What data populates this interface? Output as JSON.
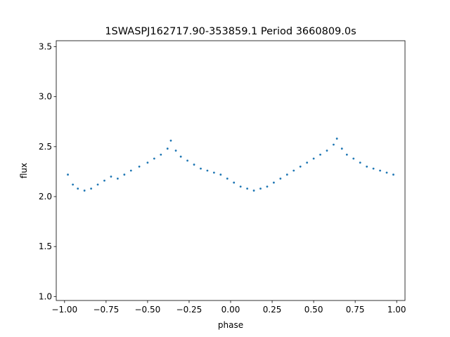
{
  "chart_data": {
    "type": "scatter",
    "title": "1SWASPJ162717.90-353859.1 Period 3660809.0s",
    "xlabel": "phase",
    "ylabel": "flux",
    "xlim": [
      -1.05,
      1.05
    ],
    "ylim": [
      0.96,
      3.56
    ],
    "x_ticks": [
      {
        "value": -1.0,
        "label": "−1.00"
      },
      {
        "value": -0.75,
        "label": "−0.75"
      },
      {
        "value": -0.5,
        "label": "−0.50"
      },
      {
        "value": -0.25,
        "label": "−0.25"
      },
      {
        "value": 0.0,
        "label": "0.00"
      },
      {
        "value": 0.25,
        "label": "0.25"
      },
      {
        "value": 0.5,
        "label": "0.50"
      },
      {
        "value": 0.75,
        "label": "0.75"
      },
      {
        "value": 1.0,
        "label": "1.00"
      }
    ],
    "y_ticks": [
      {
        "value": 1.0,
        "label": "1.0"
      },
      {
        "value": 1.5,
        "label": "1.5"
      },
      {
        "value": 2.0,
        "label": "2.0"
      },
      {
        "value": 2.5,
        "label": "2.5"
      },
      {
        "value": 3.0,
        "label": "3.0"
      },
      {
        "value": 3.5,
        "label": "3.5"
      }
    ],
    "grid": false,
    "marker_color": "#1f77b4",
    "series": [
      {
        "x": [
          -0.98,
          -0.95,
          -0.92,
          -0.88,
          -0.84,
          -0.8,
          -0.76,
          -0.72,
          -0.68,
          -0.64,
          -0.6,
          -0.55,
          -0.5,
          -0.46,
          -0.42,
          -0.38,
          -0.36,
          -0.33,
          -0.3,
          -0.26,
          -0.22,
          -0.18,
          -0.14,
          -0.1,
          -0.06,
          -0.02,
          0.02,
          0.06,
          0.1,
          0.14,
          0.18,
          0.22,
          0.26,
          0.3,
          0.34,
          0.38,
          0.42,
          0.46,
          0.5,
          0.54,
          0.58,
          0.62,
          0.64,
          0.67,
          0.7,
          0.74,
          0.78,
          0.82,
          0.86,
          0.9,
          0.94,
          0.98
        ],
        "y": [
          2.22,
          2.12,
          2.08,
          2.06,
          2.08,
          2.12,
          2.16,
          2.2,
          2.18,
          2.22,
          2.26,
          2.3,
          2.34,
          2.38,
          2.42,
          2.48,
          2.56,
          2.46,
          2.4,
          2.36,
          2.32,
          2.28,
          2.26,
          2.24,
          2.22,
          2.18,
          2.14,
          2.1,
          2.08,
          2.06,
          2.08,
          2.1,
          2.14,
          2.18,
          2.22,
          2.26,
          2.3,
          2.34,
          2.38,
          2.42,
          2.46,
          2.52,
          2.58,
          2.48,
          2.42,
          2.38,
          2.34,
          2.3,
          2.28,
          2.26,
          2.24,
          2.22
        ]
      }
    ]
  }
}
